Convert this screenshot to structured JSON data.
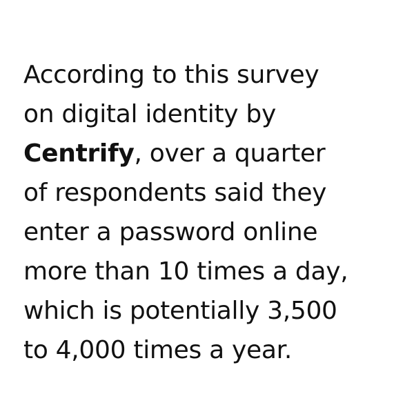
{
  "lines": [
    "According to this survey",
    "on digital identity by",
    ", over a quarter",
    "of respondents said they",
    "enter a password online",
    "more than 10 times a day,",
    "which is potentially 3,500",
    "to 4,000 times a year."
  ],
  "brand": "Centrify",
  "colors": {
    "background": "#ffffff",
    "text": "#111111"
  }
}
